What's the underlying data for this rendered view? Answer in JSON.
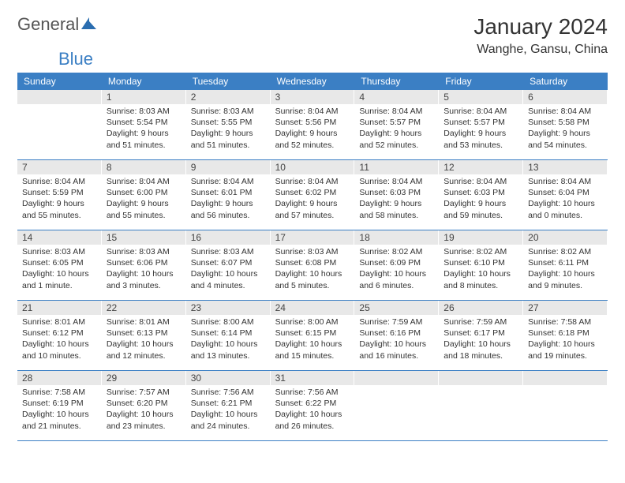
{
  "logo": {
    "text_general": "General",
    "text_blue": "Blue",
    "icon_color": "#2a6db0"
  },
  "title": "January 2024",
  "location": "Wanghe, Gansu, China",
  "colors": {
    "header_bg": "#3b7fc4",
    "header_text": "#ffffff",
    "daynum_bg": "#e8e8e8",
    "border": "#3b7fc4",
    "text": "#333333"
  },
  "day_headers": [
    "Sunday",
    "Monday",
    "Tuesday",
    "Wednesday",
    "Thursday",
    "Friday",
    "Saturday"
  ],
  "weeks": [
    [
      null,
      {
        "n": "1",
        "sr": "Sunrise: 8:03 AM",
        "ss": "Sunset: 5:54 PM",
        "dl": "Daylight: 9 hours and 51 minutes."
      },
      {
        "n": "2",
        "sr": "Sunrise: 8:03 AM",
        "ss": "Sunset: 5:55 PM",
        "dl": "Daylight: 9 hours and 51 minutes."
      },
      {
        "n": "3",
        "sr": "Sunrise: 8:04 AM",
        "ss": "Sunset: 5:56 PM",
        "dl": "Daylight: 9 hours and 52 minutes."
      },
      {
        "n": "4",
        "sr": "Sunrise: 8:04 AM",
        "ss": "Sunset: 5:57 PM",
        "dl": "Daylight: 9 hours and 52 minutes."
      },
      {
        "n": "5",
        "sr": "Sunrise: 8:04 AM",
        "ss": "Sunset: 5:57 PM",
        "dl": "Daylight: 9 hours and 53 minutes."
      },
      {
        "n": "6",
        "sr": "Sunrise: 8:04 AM",
        "ss": "Sunset: 5:58 PM",
        "dl": "Daylight: 9 hours and 54 minutes."
      }
    ],
    [
      {
        "n": "7",
        "sr": "Sunrise: 8:04 AM",
        "ss": "Sunset: 5:59 PM",
        "dl": "Daylight: 9 hours and 55 minutes."
      },
      {
        "n": "8",
        "sr": "Sunrise: 8:04 AM",
        "ss": "Sunset: 6:00 PM",
        "dl": "Daylight: 9 hours and 55 minutes."
      },
      {
        "n": "9",
        "sr": "Sunrise: 8:04 AM",
        "ss": "Sunset: 6:01 PM",
        "dl": "Daylight: 9 hours and 56 minutes."
      },
      {
        "n": "10",
        "sr": "Sunrise: 8:04 AM",
        "ss": "Sunset: 6:02 PM",
        "dl": "Daylight: 9 hours and 57 minutes."
      },
      {
        "n": "11",
        "sr": "Sunrise: 8:04 AM",
        "ss": "Sunset: 6:03 PM",
        "dl": "Daylight: 9 hours and 58 minutes."
      },
      {
        "n": "12",
        "sr": "Sunrise: 8:04 AM",
        "ss": "Sunset: 6:03 PM",
        "dl": "Daylight: 9 hours and 59 minutes."
      },
      {
        "n": "13",
        "sr": "Sunrise: 8:04 AM",
        "ss": "Sunset: 6:04 PM",
        "dl": "Daylight: 10 hours and 0 minutes."
      }
    ],
    [
      {
        "n": "14",
        "sr": "Sunrise: 8:03 AM",
        "ss": "Sunset: 6:05 PM",
        "dl": "Daylight: 10 hours and 1 minute."
      },
      {
        "n": "15",
        "sr": "Sunrise: 8:03 AM",
        "ss": "Sunset: 6:06 PM",
        "dl": "Daylight: 10 hours and 3 minutes."
      },
      {
        "n": "16",
        "sr": "Sunrise: 8:03 AM",
        "ss": "Sunset: 6:07 PM",
        "dl": "Daylight: 10 hours and 4 minutes."
      },
      {
        "n": "17",
        "sr": "Sunrise: 8:03 AM",
        "ss": "Sunset: 6:08 PM",
        "dl": "Daylight: 10 hours and 5 minutes."
      },
      {
        "n": "18",
        "sr": "Sunrise: 8:02 AM",
        "ss": "Sunset: 6:09 PM",
        "dl": "Daylight: 10 hours and 6 minutes."
      },
      {
        "n": "19",
        "sr": "Sunrise: 8:02 AM",
        "ss": "Sunset: 6:10 PM",
        "dl": "Daylight: 10 hours and 8 minutes."
      },
      {
        "n": "20",
        "sr": "Sunrise: 8:02 AM",
        "ss": "Sunset: 6:11 PM",
        "dl": "Daylight: 10 hours and 9 minutes."
      }
    ],
    [
      {
        "n": "21",
        "sr": "Sunrise: 8:01 AM",
        "ss": "Sunset: 6:12 PM",
        "dl": "Daylight: 10 hours and 10 minutes."
      },
      {
        "n": "22",
        "sr": "Sunrise: 8:01 AM",
        "ss": "Sunset: 6:13 PM",
        "dl": "Daylight: 10 hours and 12 minutes."
      },
      {
        "n": "23",
        "sr": "Sunrise: 8:00 AM",
        "ss": "Sunset: 6:14 PM",
        "dl": "Daylight: 10 hours and 13 minutes."
      },
      {
        "n": "24",
        "sr": "Sunrise: 8:00 AM",
        "ss": "Sunset: 6:15 PM",
        "dl": "Daylight: 10 hours and 15 minutes."
      },
      {
        "n": "25",
        "sr": "Sunrise: 7:59 AM",
        "ss": "Sunset: 6:16 PM",
        "dl": "Daylight: 10 hours and 16 minutes."
      },
      {
        "n": "26",
        "sr": "Sunrise: 7:59 AM",
        "ss": "Sunset: 6:17 PM",
        "dl": "Daylight: 10 hours and 18 minutes."
      },
      {
        "n": "27",
        "sr": "Sunrise: 7:58 AM",
        "ss": "Sunset: 6:18 PM",
        "dl": "Daylight: 10 hours and 19 minutes."
      }
    ],
    [
      {
        "n": "28",
        "sr": "Sunrise: 7:58 AM",
        "ss": "Sunset: 6:19 PM",
        "dl": "Daylight: 10 hours and 21 minutes."
      },
      {
        "n": "29",
        "sr": "Sunrise: 7:57 AM",
        "ss": "Sunset: 6:20 PM",
        "dl": "Daylight: 10 hours and 23 minutes."
      },
      {
        "n": "30",
        "sr": "Sunrise: 7:56 AM",
        "ss": "Sunset: 6:21 PM",
        "dl": "Daylight: 10 hours and 24 minutes."
      },
      {
        "n": "31",
        "sr": "Sunrise: 7:56 AM",
        "ss": "Sunset: 6:22 PM",
        "dl": "Daylight: 10 hours and 26 minutes."
      },
      null,
      null,
      null
    ]
  ]
}
